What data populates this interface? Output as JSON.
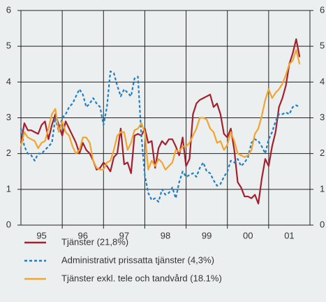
{
  "chart_data": {
    "type": "line",
    "x": [
      1995.0,
      1995.083,
      1995.167,
      1995.25,
      1995.333,
      1995.417,
      1995.5,
      1995.583,
      1995.667,
      1995.75,
      1995.833,
      1995.917,
      1996.0,
      1996.083,
      1996.167,
      1996.25,
      1996.333,
      1996.417,
      1996.5,
      1996.583,
      1996.667,
      1996.75,
      1996.833,
      1996.917,
      1997.0,
      1997.083,
      1997.167,
      1997.25,
      1997.333,
      1997.417,
      1997.5,
      1997.583,
      1997.667,
      1997.75,
      1997.833,
      1997.917,
      1998.0,
      1998.083,
      1998.167,
      1998.25,
      1998.333,
      1998.417,
      1998.5,
      1998.583,
      1998.667,
      1998.75,
      1998.833,
      1998.917,
      1999.0,
      1999.083,
      1999.167,
      1999.25,
      1999.333,
      1999.417,
      1999.5,
      1999.583,
      1999.667,
      1999.75,
      1999.833,
      1999.917,
      2000.0,
      2000.083,
      2000.167,
      2000.25,
      2000.333,
      2000.417,
      2000.5,
      2000.583,
      2000.667,
      2000.75,
      2000.833,
      2000.917,
      2001.0,
      2001.083,
      2001.167,
      2001.25,
      2001.333,
      2001.417,
      2001.5,
      2001.583,
      2001.667,
      2001.75
    ],
    "series": [
      {
        "name": "Tjänster (21,8%)",
        "color": "#a3202f",
        "dash": "none",
        "values": [
          2.3,
          2.85,
          2.65,
          2.65,
          2.6,
          2.55,
          2.8,
          2.9,
          2.4,
          2.8,
          3.1,
          2.8,
          2.5,
          2.9,
          2.7,
          2.5,
          2.3,
          2.0,
          2.3,
          2.1,
          2.0,
          1.8,
          1.55,
          1.6,
          1.75,
          1.65,
          1.5,
          1.9,
          2.0,
          2.7,
          1.7,
          1.75,
          1.45,
          2.5,
          2.55,
          2.5,
          2.7,
          2.3,
          2.35,
          1.6,
          2.15,
          2.35,
          2.25,
          2.4,
          2.4,
          2.2,
          1.95,
          2.45,
          1.65,
          1.85,
          3.1,
          3.4,
          3.5,
          3.55,
          3.6,
          3.65,
          3.3,
          3.4,
          3.1,
          2.55,
          2.45,
          2.7,
          2.1,
          1.2,
          1.05,
          0.8,
          0.8,
          0.75,
          0.85,
          0.6,
          1.3,
          1.85,
          1.65,
          2.2,
          2.6,
          3.3,
          3.55,
          3.9,
          4.5,
          4.8,
          5.2,
          4.7
        ]
      },
      {
        "name": "Administrativt prissatta tjänster (4,3%)",
        "color": "#1f7fc4",
        "dash": "4 3",
        "values": [
          2.7,
          2.2,
          2.0,
          1.95,
          1.8,
          2.0,
          2.0,
          2.1,
          2.2,
          2.3,
          3.0,
          2.6,
          3.0,
          3.1,
          3.3,
          3.4,
          3.6,
          3.8,
          3.65,
          3.3,
          3.4,
          3.55,
          3.4,
          3.3,
          2.8,
          3.3,
          4.3,
          4.25,
          3.9,
          3.6,
          3.8,
          3.7,
          3.6,
          4.1,
          4.15,
          2.5,
          1.4,
          0.9,
          0.7,
          0.75,
          0.65,
          1.0,
          0.85,
          0.9,
          1.05,
          0.75,
          1.2,
          1.5,
          1.35,
          1.4,
          1.45,
          1.35,
          1.6,
          1.75,
          1.5,
          1.45,
          1.25,
          1.1,
          1.15,
          1.35,
          1.5,
          1.8,
          1.75,
          1.85,
          1.65,
          1.75,
          1.9,
          2.3,
          2.4,
          2.35,
          2.2,
          2.0,
          2.4,
          2.6,
          2.9,
          3.1,
          3.1,
          3.15,
          3.1,
          3.3,
          3.35,
          3.3
        ]
      },
      {
        "name": "Tjänster exkl. tele och tandvård (18.1%)",
        "color": "#f0a530",
        "dash": "none",
        "values": [
          2.2,
          2.6,
          2.45,
          2.4,
          2.35,
          2.15,
          2.3,
          2.35,
          2.7,
          3.1,
          3.25,
          2.6,
          2.9,
          2.6,
          2.5,
          2.2,
          2.0,
          2.1,
          2.45,
          2.45,
          2.3,
          1.8,
          1.6,
          1.55,
          1.55,
          1.75,
          1.8,
          2.1,
          2.5,
          2.6,
          2.6,
          2.1,
          2.3,
          2.65,
          2.7,
          2.85,
          2.6,
          1.55,
          1.8,
          1.65,
          1.85,
          1.75,
          1.55,
          1.65,
          1.75,
          2.1,
          2.05,
          2.2,
          2.2,
          2.3,
          2.5,
          2.7,
          3.0,
          3.0,
          2.95,
          2.7,
          2.6,
          2.3,
          2.35,
          2.1,
          2.25,
          2.6,
          2.35,
          2.0,
          1.95,
          1.9,
          1.95,
          2.1,
          2.55,
          2.7,
          3.05,
          3.5,
          3.8,
          3.55,
          3.7,
          3.8,
          3.95,
          4.2,
          4.5,
          4.6,
          4.9,
          4.5
        ]
      }
    ],
    "xlim": [
      1995,
      2002
    ],
    "xticks": [
      {
        "value": 1995.5,
        "label": "95"
      },
      {
        "value": 1996.5,
        "label": "96"
      },
      {
        "value": 1997.5,
        "label": "97"
      },
      {
        "value": 1998.5,
        "label": "98"
      },
      {
        "value": 1999.5,
        "label": "99"
      },
      {
        "value": 2000.5,
        "label": "00"
      },
      {
        "value": 2001.5,
        "label": "01"
      }
    ],
    "xgrid": [
      1996,
      1997,
      1998,
      1999,
      2000,
      2001
    ],
    "ylim": [
      0,
      6
    ],
    "yticks": [
      0,
      1,
      2,
      3,
      4,
      5,
      6
    ],
    "grid": true
  }
}
